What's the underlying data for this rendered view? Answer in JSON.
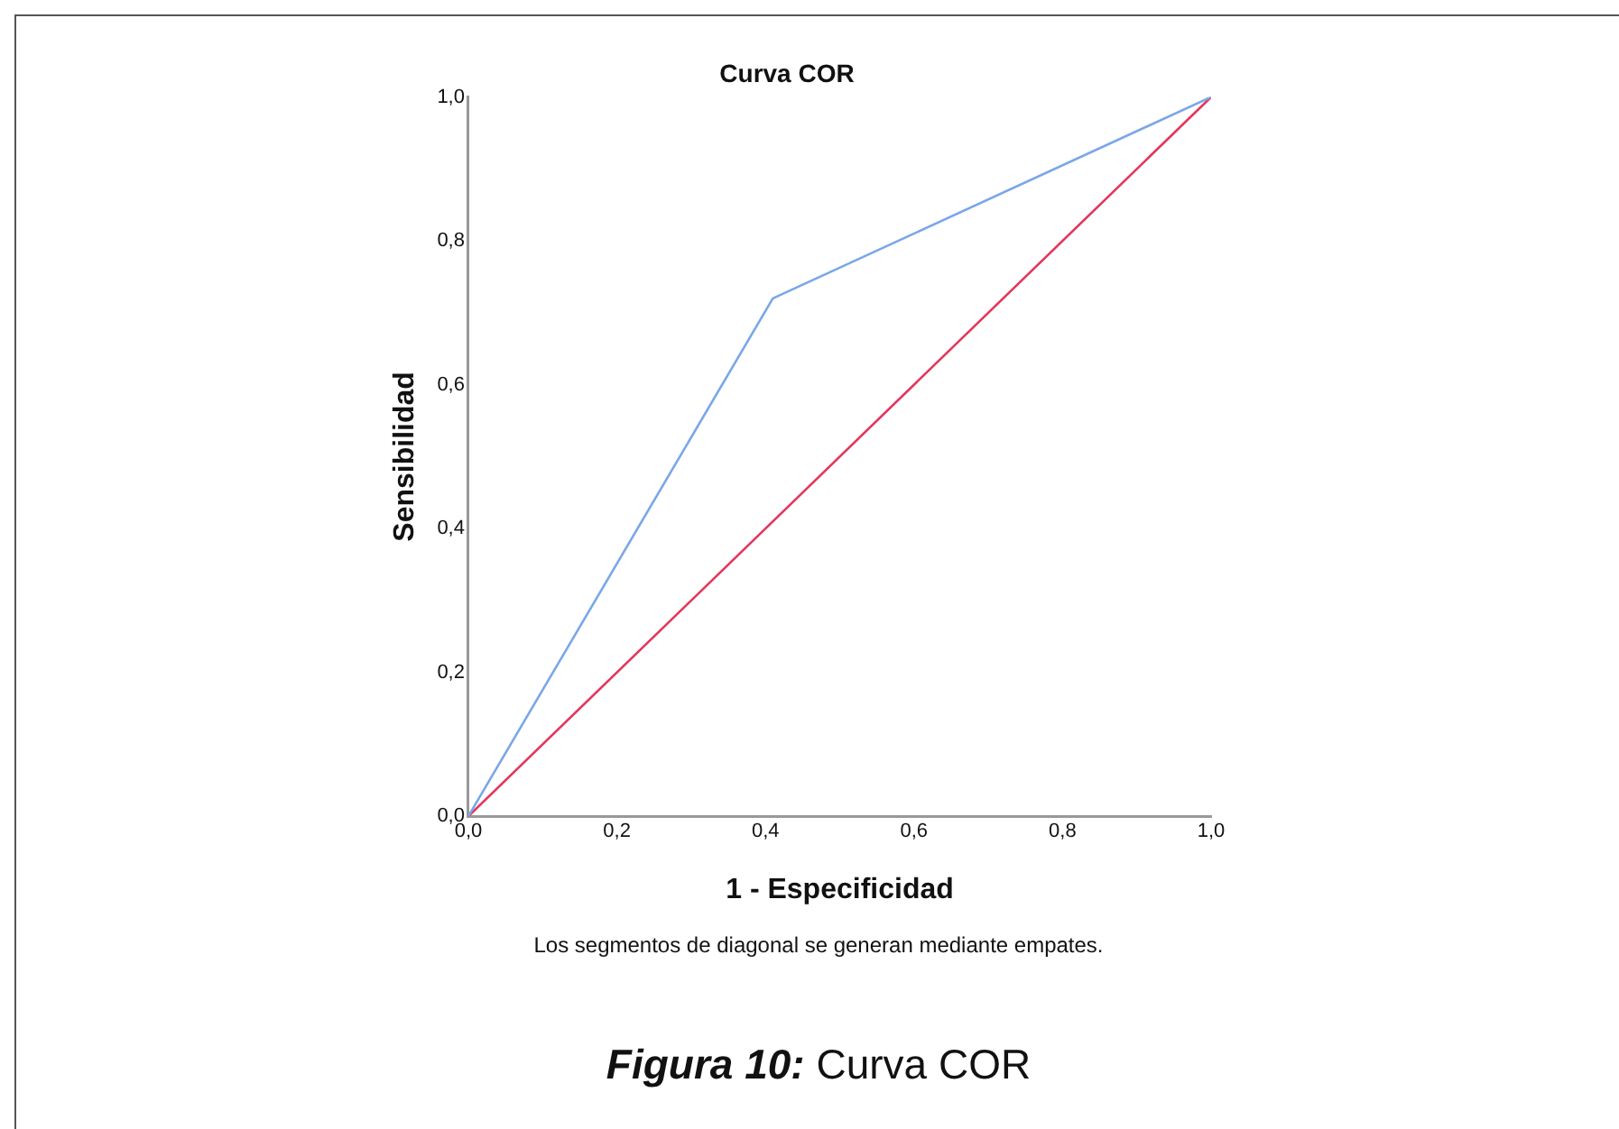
{
  "chart_data": {
    "type": "line",
    "title": "Curva COR",
    "xlabel": "1 - Especificidad",
    "ylabel": "Sensibilidad",
    "x": [
      0,
      0.41,
      1
    ],
    "series": [
      {
        "color": "#7aa7e8",
        "values": [
          0,
          0.72,
          1
        ]
      },
      {
        "color": "#e3365d",
        "x": [
          0,
          1
        ],
        "values": [
          0,
          1
        ]
      }
    ],
    "xlim": [
      0,
      1
    ],
    "xticks": [
      {
        "value": 0,
        "label": "0,0"
      },
      {
        "value": 0.2,
        "label": "0,2"
      },
      {
        "value": 0.4,
        "label": "0,4"
      },
      {
        "value": 0.6,
        "label": "0,6"
      },
      {
        "value": 0.8,
        "label": "0,8"
      },
      {
        "value": 1,
        "label": "1,0"
      }
    ],
    "ylim": [
      0,
      1
    ],
    "yticks": [
      {
        "value": 0,
        "label": "0,0"
      },
      {
        "value": 0.2,
        "label": "0,2"
      },
      {
        "value": 0.4,
        "label": "0,4"
      },
      {
        "value": 0.6,
        "label": "0,6"
      },
      {
        "value": 0.8,
        "label": "0,8"
      },
      {
        "value": 1,
        "label": "1,0"
      }
    ],
    "grid": false,
    "legend": false,
    "marker": "none",
    "line_style": "solid",
    "annotations": [
      "Los segmentos de diagonal se generan mediante empates.",
      "Figura 10:",
      "Curva COR"
    ]
  }
}
